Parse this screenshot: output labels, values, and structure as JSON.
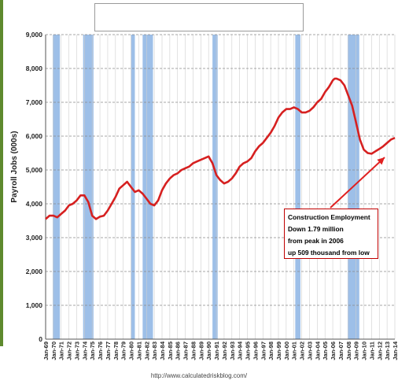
{
  "chart_data": {
    "type": "line",
    "title": "",
    "xlabel": "",
    "ylabel": "Payroll Jobs (000s)",
    "ylim": [
      0,
      9000
    ],
    "yticks": [
      0,
      1000,
      2000,
      3000,
      4000,
      5000,
      6000,
      7000,
      8000,
      9000
    ],
    "ytick_labels": [
      "0",
      "1,000",
      "2,000",
      "3,000",
      "4,000",
      "5,000",
      "6,000",
      "7,000",
      "8,000",
      "9,000"
    ],
    "xlim": [
      "Jan-69",
      "Jan-14"
    ],
    "xtick_labels": [
      "Jan-69",
      "Jan-70",
      "Jan-71",
      "Jan-72",
      "Jan-73",
      "Jan-74",
      "Jan-75",
      "Jan-76",
      "Jan-77",
      "Jan-78",
      "Jan-79",
      "Jan-80",
      "Jan-81",
      "Jan-82",
      "Jan-83",
      "Jan-84",
      "Jan-85",
      "Jan-86",
      "Jan-87",
      "Jan-88",
      "Jan-89",
      "Jan-90",
      "Jan-91",
      "Jan-92",
      "Jan-93",
      "Jan-94",
      "Jan-95",
      "Jan-96",
      "Jan-97",
      "Jan-98",
      "Jan-99",
      "Jan-00",
      "Jan-01",
      "Jan-02",
      "Jan-03",
      "Jan-04",
      "Jan-05",
      "Jan-06",
      "Jan-07",
      "Jan-08",
      "Jan-09",
      "Jan-10",
      "Jan-11",
      "Jan-12",
      "Jan-13",
      "Jan-14"
    ],
    "grid": "horizontal dashed, vertical at each year",
    "recessions": [
      [
        "Dec-69",
        "Nov-70"
      ],
      [
        "Nov-73",
        "Mar-75"
      ],
      [
        "Jan-80",
        "Jul-80"
      ],
      [
        "Jul-81",
        "Nov-82"
      ],
      [
        "Jul-90",
        "Mar-91"
      ],
      [
        "Mar-01",
        "Nov-01"
      ],
      [
        "Dec-07",
        "Jun-09"
      ]
    ],
    "series": [
      {
        "name": "",
        "x": [
          "Jan-69",
          "Jul-69",
          "Jan-70",
          "Jul-70",
          "Jan-71",
          "Jul-71",
          "Jan-72",
          "Jul-72",
          "Jan-73",
          "Jul-73",
          "Jan-74",
          "Jul-74",
          "Jan-75",
          "Jul-75",
          "Jan-76",
          "Jul-76",
          "Jan-77",
          "Jul-77",
          "Jan-78",
          "Jul-78",
          "Jan-79",
          "Jul-79",
          "Jan-80",
          "Jul-80",
          "Jan-81",
          "Jul-81",
          "Jan-82",
          "Jul-82",
          "Jan-83",
          "Jul-83",
          "Jan-84",
          "Jul-84",
          "Jan-85",
          "Jul-85",
          "Jan-86",
          "Jul-86",
          "Jan-87",
          "Jul-87",
          "Jan-88",
          "Jul-88",
          "Jan-89",
          "Jul-89",
          "Jan-90",
          "Jul-90",
          "Jan-91",
          "Jul-91",
          "Jan-92",
          "Jul-92",
          "Jan-93",
          "Jul-93",
          "Jan-94",
          "Jul-94",
          "Jan-95",
          "Jul-95",
          "Jan-96",
          "Jul-96",
          "Jan-97",
          "Jul-97",
          "Jan-98",
          "Jul-98",
          "Jan-99",
          "Jul-99",
          "Jan-00",
          "Jul-00",
          "Jan-01",
          "Jul-01",
          "Jan-02",
          "Jul-02",
          "Jan-03",
          "Jul-03",
          "Jan-04",
          "Jul-04",
          "Jan-05",
          "Jul-05",
          "Jan-06",
          "Apr-06",
          "Jul-06",
          "Jan-07",
          "Jul-07",
          "Jan-08",
          "Jul-08",
          "Jan-09",
          "Jul-09",
          "Jan-10",
          "Jul-10",
          "Jan-11",
          "Jul-11",
          "Jan-12",
          "Jul-12",
          "Jan-13",
          "Jul-13",
          "Jan-14"
        ],
        "values": [
          3550,
          3650,
          3650,
          3600,
          3700,
          3800,
          3950,
          4000,
          4100,
          4250,
          4250,
          4050,
          3650,
          3550,
          3620,
          3650,
          3800,
          4000,
          4200,
          4450,
          4550,
          4650,
          4500,
          4350,
          4400,
          4300,
          4150,
          4000,
          3950,
          4100,
          4400,
          4600,
          4750,
          4850,
          4900,
          5000,
          5050,
          5100,
          5200,
          5250,
          5300,
          5350,
          5400,
          5200,
          4850,
          4700,
          4600,
          4650,
          4750,
          4900,
          5100,
          5200,
          5250,
          5350,
          5550,
          5700,
          5800,
          5950,
          6100,
          6300,
          6550,
          6700,
          6800,
          6800,
          6850,
          6800,
          6700,
          6700,
          6750,
          6850,
          7000,
          7100,
          7300,
          7450,
          7650,
          7700,
          7700,
          7650,
          7500,
          7200,
          6900,
          6400,
          5900,
          5600,
          5500,
          5480,
          5550,
          5620,
          5700,
          5800,
          5900,
          5950
        ]
      }
    ],
    "annotation": {
      "lines": [
        "Construction  Employment",
        "Down 1.79 million",
        "from peak in 2006",
        "up 509 thousand from low"
      ]
    },
    "source": "http://www.calculatedriskblog.com/",
    "colors": {
      "line": "#d62020",
      "recession": "#9dbfe8",
      "arrow": "#e02020",
      "frame": "#5e8a2e"
    }
  }
}
